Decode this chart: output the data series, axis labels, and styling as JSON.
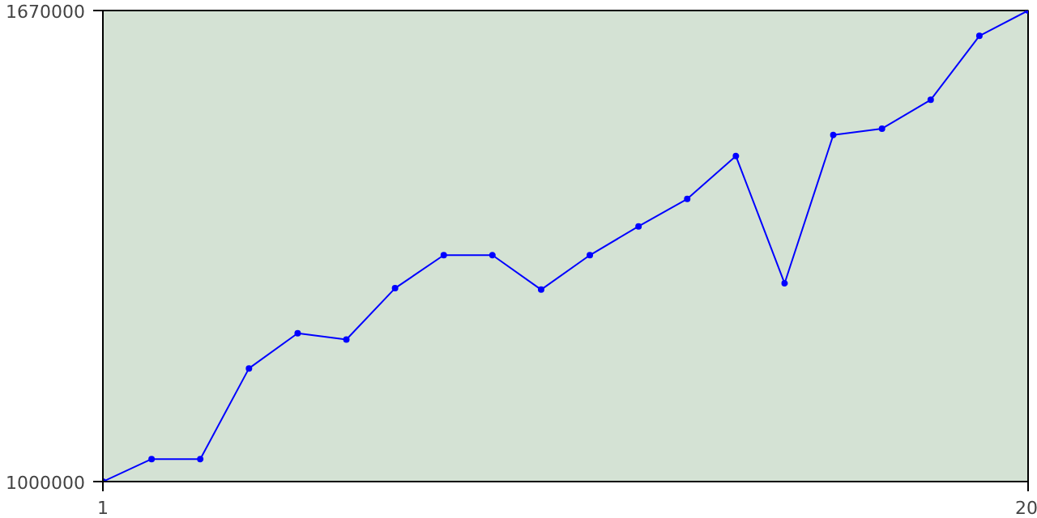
{
  "chart_data": {
    "type": "line",
    "x": [
      1,
      2,
      3,
      4,
      5,
      6,
      7,
      8,
      9,
      10,
      11,
      12,
      13,
      14,
      15,
      16,
      17,
      18,
      19,
      20
    ],
    "series": [
      {
        "color": "#0000ff",
        "values": [
          1000000,
          1032000,
          1032000,
          1161000,
          1211000,
          1202000,
          1275000,
          1322000,
          1322000,
          1273000,
          1322000,
          1363000,
          1402000,
          1463000,
          1282000,
          1493000,
          1502000,
          1543000,
          1634000,
          1670000
        ]
      }
    ],
    "xlim": [
      1,
      20
    ],
    "ylim": [
      1000000,
      1670000
    ],
    "xticks": [
      1,
      20
    ],
    "yticks": [
      1000000,
      1670000
    ],
    "marker": "circle",
    "line_style": "solid"
  }
}
